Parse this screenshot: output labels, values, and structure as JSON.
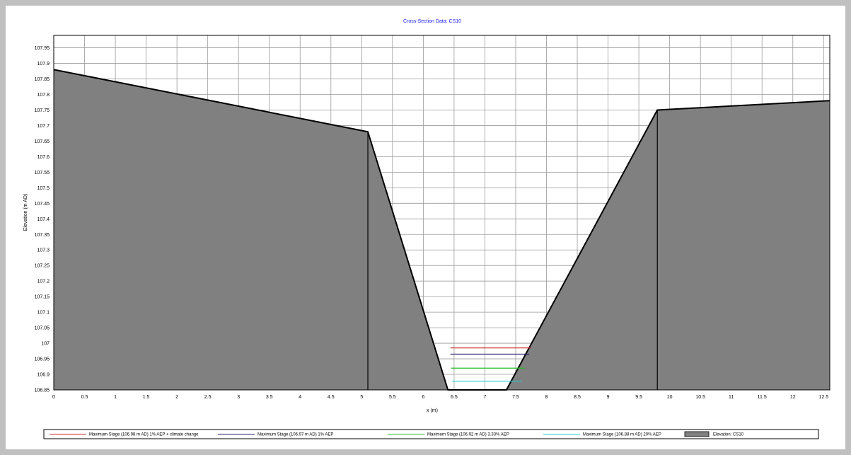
{
  "chart_data": {
    "type": "area",
    "title": "Cross-Section Data: CS10",
    "xlabel": "x (m)",
    "ylabel": "Elevation (m AD)",
    "xlim": [
      0,
      12.6
    ],
    "ylim": [
      106.85,
      107.99
    ],
    "x_ticks": [
      "0",
      "0.5",
      "1",
      "1.5",
      "2",
      "2.5",
      "3",
      "3.5",
      "4",
      "4.5",
      "5",
      "5.5",
      "6",
      "6.5",
      "7",
      "7.5",
      "8",
      "8.5",
      "9",
      "9.5",
      "10",
      "10.5",
      "11",
      "11.5",
      "12",
      "12.5"
    ],
    "y_ticks": [
      "106.85",
      "106.9",
      "106.95",
      "107",
      "107.05",
      "107.1",
      "107.15",
      "107.2",
      "107.25",
      "107.3",
      "107.35",
      "107.4",
      "107.45",
      "107.5",
      "107.55",
      "107.6",
      "107.65",
      "107.7",
      "107.75",
      "107.8",
      "107.85",
      "107.9",
      "107.95"
    ],
    "grid": true,
    "legend_position": "bottom",
    "elevation": {
      "name": "Elevation: CS10",
      "color": "#808080",
      "x": [
        0,
        5.1,
        6.4,
        7.35,
        9.8,
        12.6
      ],
      "y": [
        107.88,
        107.68,
        106.85,
        106.85,
        107.75,
        107.78
      ],
      "vertical_markers": [
        5.1,
        9.8
      ]
    },
    "series": [
      {
        "name": "Maximum Stage (106.98 m AD) 1% AEP + climate change",
        "color": "#cc2222",
        "y": 106.985,
        "x": [
          6.44,
          7.75
        ]
      },
      {
        "name": "Maximum Stage (106.97 m AD) 1% AEP",
        "color": "#1a1a66",
        "y": 106.965,
        "x": [
          6.44,
          7.72
        ]
      },
      {
        "name": "Maximum Stage (106.92 m AD) 3.33% AEP",
        "color": "#22bb22",
        "y": 106.92,
        "x": [
          6.45,
          7.65
        ]
      },
      {
        "name": "Maximum Stage (106.88 m AD) 20% AEP",
        "color": "#22cccc",
        "y": 106.878,
        "x": [
          6.47,
          7.6
        ]
      }
    ]
  }
}
